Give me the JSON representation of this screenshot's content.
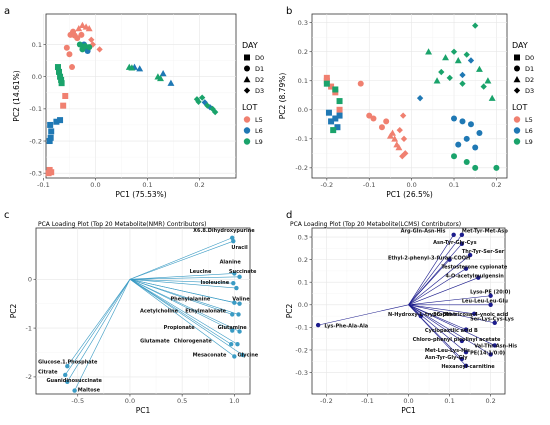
{
  "colors": {
    "L5": "#f08070",
    "L6": "#1f78b4",
    "L9": "#1aa36b",
    "loading_c": "#3a9bc4",
    "loading_d": "#1c1c8c"
  },
  "legend": {
    "day_title": "DAY",
    "day_items": [
      "D0",
      "D1",
      "D2",
      "D3"
    ],
    "lot_title": "LOT",
    "lot_items": [
      "L5",
      "L6",
      "L9"
    ]
  },
  "chart_data": [
    {
      "panel": "a",
      "type": "scatter",
      "xlabel": "PC1 (75.53%)",
      "ylabel": "PC2 (14.61%)",
      "xlim": [
        -0.095,
        0.27
      ],
      "ylim": [
        -0.315,
        0.195
      ],
      "xticks": [
        -0.1,
        0.0,
        0.1,
        0.2
      ],
      "xtick_labels": [
        "-0.1",
        "0.0",
        "0.1",
        "0.2"
      ],
      "yticks": [
        -0.3,
        -0.2,
        -0.1,
        0.0,
        0.1
      ],
      "ytick_labels": [
        "-0.3",
        "-0.2",
        "-0.1",
        "0.0",
        "0.1"
      ],
      "points": [
        [
          -0.088,
          -0.29,
          "L5",
          "D0"
        ],
        [
          -0.085,
          -0.297,
          "L5",
          "D0"
        ],
        [
          -0.062,
          -0.09,
          "L5",
          "D0"
        ],
        [
          -0.058,
          -0.06,
          "L5",
          "D0"
        ],
        [
          -0.09,
          -0.3,
          "L5",
          "D0"
        ],
        [
          -0.055,
          0.09,
          "L5",
          "D1"
        ],
        [
          -0.05,
          0.07,
          "L5",
          "D1"
        ],
        [
          -0.045,
          0.03,
          "L5",
          "D1"
        ],
        [
          -0.048,
          0.13,
          "L5",
          "D1"
        ],
        [
          -0.044,
          0.135,
          "L5",
          "D1"
        ],
        [
          -0.043,
          0.14,
          "L5",
          "D1"
        ],
        [
          -0.04,
          0.128,
          "L5",
          "D1"
        ],
        [
          -0.035,
          0.12,
          "L5",
          "D1"
        ],
        [
          -0.032,
          0.15,
          "L5",
          "D2"
        ],
        [
          -0.025,
          0.16,
          "L5",
          "D2"
        ],
        [
          -0.018,
          0.155,
          "L5",
          "D2"
        ],
        [
          -0.012,
          0.15,
          "L5",
          "D2"
        ],
        [
          -0.008,
          0.115,
          "L5",
          "D3"
        ],
        [
          -0.005,
          0.1,
          "L5",
          "D3"
        ],
        [
          0.008,
          0.085,
          "L5",
          "D3"
        ],
        [
          -0.02,
          0.09,
          "L5",
          "D3"
        ],
        [
          -0.027,
          0.13,
          "L5",
          "D1"
        ],
        [
          -0.087,
          -0.15,
          "L6",
          "D0"
        ],
        [
          -0.085,
          -0.17,
          "L6",
          "D0"
        ],
        [
          -0.086,
          -0.19,
          "L6",
          "D0"
        ],
        [
          -0.088,
          -0.2,
          "L6",
          "D0"
        ],
        [
          -0.075,
          -0.14,
          "L6",
          "D0"
        ],
        [
          -0.068,
          -0.135,
          "L6",
          "D0"
        ],
        [
          -0.022,
          0.1,
          "L6",
          "D1"
        ],
        [
          -0.015,
          0.08,
          "L6",
          "D1"
        ],
        [
          0.075,
          0.03,
          "L6",
          "D2"
        ],
        [
          0.085,
          0.025,
          "L6",
          "D2"
        ],
        [
          0.13,
          0.01,
          "L6",
          "D2"
        ],
        [
          0.145,
          -0.02,
          "L6",
          "D2"
        ],
        [
          0.21,
          -0.08,
          "L6",
          "D3"
        ],
        [
          0.22,
          -0.095,
          "L6",
          "D3"
        ],
        [
          -0.07,
          0.015,
          "L9",
          "D0"
        ],
        [
          -0.068,
          0.0,
          "L9",
          "D0"
        ],
        [
          -0.072,
          0.03,
          "L9",
          "D0"
        ],
        [
          -0.065,
          -0.02,
          "L9",
          "D0"
        ],
        [
          -0.066,
          -0.01,
          "L9",
          "D0"
        ],
        [
          -0.03,
          0.1,
          "L9",
          "D1"
        ],
        [
          -0.025,
          0.085,
          "L9",
          "D1"
        ],
        [
          -0.02,
          0.095,
          "L9",
          "D1"
        ],
        [
          -0.012,
          0.092,
          "L9",
          "D1"
        ],
        [
          0.065,
          0.03,
          "L9",
          "D2"
        ],
        [
          0.07,
          0.028,
          "L9",
          "D2"
        ],
        [
          0.12,
          0.0,
          "L9",
          "D2"
        ],
        [
          0.125,
          -0.005,
          "L9",
          "D2"
        ],
        [
          0.195,
          -0.07,
          "L9",
          "D3"
        ],
        [
          0.205,
          -0.065,
          "L9",
          "D3"
        ],
        [
          0.215,
          -0.09,
          "L9",
          "D3"
        ],
        [
          0.225,
          -0.1,
          "L9",
          "D3"
        ],
        [
          0.23,
          -0.11,
          "L9",
          "D3"
        ],
        [
          0.198,
          -0.078,
          "L9",
          "D3"
        ]
      ]
    },
    {
      "panel": "b",
      "type": "scatter",
      "xlabel": "PC1 (26.5%)",
      "ylabel": "PC2 (8.79%)",
      "xlim": [
        -0.235,
        0.225
      ],
      "ylim": [
        -0.235,
        0.33
      ],
      "xticks": [
        -0.2,
        -0.1,
        0.0,
        0.1,
        0.2
      ],
      "xtick_labels": [
        "-0.2",
        "-0.1",
        "0.0",
        "0.1",
        "0.2"
      ],
      "yticks": [
        -0.2,
        -0.1,
        0.0,
        0.1,
        0.2,
        0.3
      ],
      "ytick_labels": [
        "-0.2",
        "-0.1",
        "0.0",
        "0.1",
        "0.2",
        "0.3"
      ],
      "points": [
        [
          -0.2,
          0.1,
          "L5",
          "D0"
        ],
        [
          -0.19,
          0.08,
          "L5",
          "D0"
        ],
        [
          -0.18,
          0.06,
          "L5",
          "D0"
        ],
        [
          -0.17,
          0.0,
          "L5",
          "D0"
        ],
        [
          -0.2,
          0.11,
          "L5",
          "D0"
        ],
        [
          -0.12,
          0.09,
          "L5",
          "D1"
        ],
        [
          -0.1,
          -0.02,
          "L5",
          "D1"
        ],
        [
          -0.09,
          -0.03,
          "L5",
          "D1"
        ],
        [
          -0.07,
          -0.06,
          "L5",
          "D1"
        ],
        [
          -0.06,
          -0.04,
          "L5",
          "D1"
        ],
        [
          -0.05,
          -0.09,
          "L5",
          "D2"
        ],
        [
          -0.045,
          -0.08,
          "L5",
          "D2"
        ],
        [
          -0.04,
          -0.1,
          "L5",
          "D2"
        ],
        [
          -0.035,
          -0.12,
          "L5",
          "D2"
        ],
        [
          -0.03,
          -0.13,
          "L5",
          "D2"
        ],
        [
          -0.028,
          -0.07,
          "L5",
          "D3"
        ],
        [
          -0.022,
          -0.16,
          "L5",
          "D3"
        ],
        [
          -0.018,
          -0.1,
          "L5",
          "D3"
        ],
        [
          -0.015,
          -0.15,
          "L5",
          "D3"
        ],
        [
          -0.02,
          -0.02,
          "L5",
          "D3"
        ],
        [
          -0.19,
          -0.04,
          "L6",
          "D0"
        ],
        [
          -0.18,
          -0.03,
          "L6",
          "D0"
        ],
        [
          -0.17,
          -0.02,
          "L6",
          "D0"
        ],
        [
          -0.195,
          -0.01,
          "L6",
          "D0"
        ],
        [
          -0.175,
          -0.06,
          "L6",
          "D0"
        ],
        [
          0.02,
          0.04,
          "L6",
          "D3"
        ],
        [
          0.1,
          -0.03,
          "L6",
          "D1"
        ],
        [
          0.12,
          -0.04,
          "L6",
          "D1"
        ],
        [
          0.14,
          -0.05,
          "L6",
          "D1"
        ],
        [
          0.16,
          -0.08,
          "L6",
          "D1"
        ],
        [
          0.13,
          -0.1,
          "L6",
          "D1"
        ],
        [
          0.11,
          -0.12,
          "L6",
          "D1"
        ],
        [
          0.15,
          -0.13,
          "L6",
          "D1"
        ],
        [
          0.14,
          0.17,
          "L6",
          "D3"
        ],
        [
          0.12,
          0.12,
          "L6",
          "D3"
        ],
        [
          -0.2,
          0.09,
          "L9",
          "D0"
        ],
        [
          -0.18,
          0.07,
          "L9",
          "D0"
        ],
        [
          -0.185,
          -0.07,
          "L9",
          "D0"
        ],
        [
          -0.17,
          0.03,
          "L9",
          "D0"
        ],
        [
          0.04,
          0.2,
          "L9",
          "D2"
        ],
        [
          0.06,
          0.1,
          "L9",
          "D2"
        ],
        [
          0.07,
          0.13,
          "L9",
          "D3"
        ],
        [
          0.08,
          0.18,
          "L9",
          "D2"
        ],
        [
          0.09,
          0.11,
          "L9",
          "D3"
        ],
        [
          0.1,
          0.2,
          "L9",
          "D3"
        ],
        [
          0.11,
          0.17,
          "L9",
          "D2"
        ],
        [
          0.12,
          0.09,
          "L9",
          "D3"
        ],
        [
          0.13,
          0.19,
          "L9",
          "D3"
        ],
        [
          0.15,
          0.29,
          "L9",
          "D3"
        ],
        [
          0.16,
          0.14,
          "L9",
          "D2"
        ],
        [
          0.17,
          0.08,
          "L9",
          "D3"
        ],
        [
          0.18,
          0.1,
          "L9",
          "D2"
        ],
        [
          0.19,
          0.04,
          "L9",
          "D2"
        ],
        [
          0.1,
          -0.16,
          "L9",
          "D1"
        ],
        [
          0.13,
          -0.18,
          "L9",
          "D1"
        ],
        [
          0.15,
          -0.2,
          "L9",
          "D1"
        ],
        [
          0.2,
          -0.2,
          "L9",
          "D1"
        ]
      ]
    },
    {
      "panel": "c",
      "type": "biplot",
      "subtitle": "PCA Loading Plot (Top 20 Metabolite(NMR) Contributors)",
      "xlabel": "PC1",
      "ylabel": "PC2",
      "xlim": [
        -0.9,
        1.15
      ],
      "ylim": [
        -2.35,
        1.05
      ],
      "xticks": [
        -0.5,
        0.0,
        0.5,
        1.0
      ],
      "xtick_labels": [
        "-0.5",
        "0.0",
        "0.5",
        "1.0"
      ],
      "yticks": [
        -2,
        -1,
        0
      ],
      "ytick_labels": [
        "-2",
        "-1",
        "0"
      ],
      "arrows": [
        {
          "label": "X6.8.Dihydroxypurine",
          "x": 0.98,
          "y": 0.85,
          "lx": 0.9,
          "ly": 0.97,
          "anchor": "middle"
        },
        {
          "label": "Uracil",
          "x": 0.99,
          "y": 0.78,
          "lx": 1.05,
          "ly": 0.62,
          "anchor": "middle"
        },
        {
          "label": "Alanine",
          "x": 1.0,
          "y": 0.12,
          "lx": 0.96,
          "ly": 0.32,
          "anchor": "middle"
        },
        {
          "label": "Succinate",
          "x": 1.05,
          "y": 0.05,
          "lx": 1.08,
          "ly": 0.13,
          "anchor": "middle"
        },
        {
          "label": "Leucine",
          "x": 0.99,
          "y": -0.08,
          "lx": 0.78,
          "ly": 0.13,
          "anchor": "end"
        },
        {
          "label": "Isoleucine",
          "x": 1.02,
          "y": -0.18,
          "lx": 0.95,
          "ly": -0.1,
          "anchor": "end"
        },
        {
          "label": "Phenylalanine",
          "x": 1.0,
          "y": -0.48,
          "lx": 0.77,
          "ly": -0.43,
          "anchor": "end"
        },
        {
          "label": "Valine",
          "x": 1.05,
          "y": -0.5,
          "lx": 0.98,
          "ly": -0.43,
          "anchor": "start"
        },
        {
          "label": "Acetylcholine",
          "x": 0.98,
          "y": -0.72,
          "lx": 0.46,
          "ly": -0.68,
          "anchor": "end"
        },
        {
          "label": "Ethylmalonate",
          "x": 1.04,
          "y": -0.72,
          "lx": 0.53,
          "ly": -0.68,
          "anchor": "start"
        },
        {
          "label": "Propionate",
          "x": 0.98,
          "y": -1.05,
          "lx": 0.62,
          "ly": -1.02,
          "anchor": "end"
        },
        {
          "label": "Glutamine",
          "x": 1.05,
          "y": -1.07,
          "lx": 0.84,
          "ly": -1.02,
          "anchor": "start"
        },
        {
          "label": "Glutamate",
          "x": 0.97,
          "y": -1.33,
          "lx": 0.38,
          "ly": -1.3,
          "anchor": "end"
        },
        {
          "label": "Chlorogenate",
          "x": 1.03,
          "y": -1.33,
          "lx": 0.42,
          "ly": -1.3,
          "anchor": "start"
        },
        {
          "label": "Mesaconate",
          "x": 1.0,
          "y": -1.58,
          "lx": 0.6,
          "ly": -1.58,
          "anchor": "start"
        },
        {
          "label": "Glycine",
          "x": 1.08,
          "y": -1.55,
          "lx": 1.03,
          "ly": -1.58,
          "anchor": "start"
        },
        {
          "label": "Glucose.1.Phosphate",
          "x": -0.6,
          "y": -1.78,
          "lx": -0.88,
          "ly": -1.73,
          "anchor": "start"
        },
        {
          "label": "Citrate",
          "x": -0.62,
          "y": -1.96,
          "lx": -0.88,
          "ly": -1.93,
          "anchor": "start"
        },
        {
          "label": "Guanidinosuccinate",
          "x": -0.6,
          "y": -2.1,
          "lx": -0.8,
          "ly": -2.1,
          "anchor": "start"
        },
        {
          "label": "Maltose",
          "x": -0.53,
          "y": -2.28,
          "lx": -0.5,
          "ly": -2.3,
          "anchor": "start"
        }
      ]
    },
    {
      "panel": "d",
      "type": "biplot",
      "subtitle": "PCA Loading Plot (Top 20 Metabolite(LCMS) Contributors)",
      "xlabel": "PC1",
      "ylabel": "PC2",
      "xlim": [
        -0.235,
        0.235
      ],
      "ylim": [
        -0.395,
        0.34
      ],
      "xticks": [
        -0.2,
        -0.1,
        0.0,
        0.1,
        0.2
      ],
      "xtick_labels": [
        "-0.2",
        "-0.1",
        "0.0",
        "0.1",
        "0.2"
      ],
      "yticks": [
        -0.3,
        -0.2,
        -0.1,
        0.0,
        0.1,
        0.2,
        0.3
      ],
      "ytick_labels": [
        "-0.3",
        "-0.2",
        "-0.1",
        "0.0",
        "0.1",
        "0.2",
        "0.3"
      ],
      "arrows": [
        {
          "label": "Arg-Gln-Asn-His",
          "x": 0.11,
          "y": 0.31,
          "lx": 0.09,
          "ly": 0.32,
          "anchor": "end"
        },
        {
          "label": "Met-Tyr-Met-Asp",
          "x": 0.13,
          "y": 0.31,
          "lx": 0.13,
          "ly": 0.32,
          "anchor": "start"
        },
        {
          "label": "Asn-Tyr-Gly-Cys",
          "x": 0.13,
          "y": 0.27,
          "lx": 0.06,
          "ly": 0.27,
          "anchor": "start"
        },
        {
          "label": "Thr-Tyr-Ser-Ser",
          "x": 0.15,
          "y": 0.22,
          "lx": 0.13,
          "ly": 0.23,
          "anchor": "start"
        },
        {
          "label": "Ethyl-2-phenyl-3-furan-COOH",
          "x": 0.1,
          "y": 0.2,
          "lx": -0.05,
          "ly": 0.2,
          "anchor": "start"
        },
        {
          "label": "Testosterone cypionate",
          "x": 0.14,
          "y": 0.16,
          "lx": 0.08,
          "ly": 0.16,
          "anchor": "start"
        },
        {
          "label": "4-O-acetylmulgensin",
          "x": 0.17,
          "y": 0.12,
          "lx": 0.09,
          "ly": 0.12,
          "anchor": "start"
        },
        {
          "label": "Lyso-PE (20:0)",
          "x": 0.2,
          "y": 0.04,
          "lx": 0.15,
          "ly": 0.05,
          "anchor": "start"
        },
        {
          "label": "Leu-Leu-Leu-Glu",
          "x": 0.2,
          "y": 0.0,
          "lx": 0.13,
          "ly": 0.01,
          "anchor": "start"
        },
        {
          "label": "N-Hydroxy-L-tryptophan",
          "x": 0.03,
          "y": -0.05,
          "lx": -0.05,
          "ly": -0.05,
          "anchor": "start"
        },
        {
          "label": "5C-OH-tricosa-4-ynoic acid",
          "x": 0.16,
          "y": -0.04,
          "lx": 0.06,
          "ly": -0.05,
          "anchor": "start"
        },
        {
          "label": "Ser-Lys-Cys-Lys",
          "x": 0.21,
          "y": -0.08,
          "lx": 0.15,
          "ly": -0.07,
          "anchor": "start"
        },
        {
          "label": "Lys-Phe-Ala-Ala",
          "x": -0.22,
          "y": -0.09,
          "lx": -0.205,
          "ly": -0.1,
          "anchor": "start"
        },
        {
          "label": "Cyclopaxtlic acid B",
          "x": 0.14,
          "y": -0.11,
          "lx": 0.04,
          "ly": -0.12,
          "anchor": "start"
        },
        {
          "label": "Chloro-phenyl picolinyl acetate",
          "x": 0.13,
          "y": -0.16,
          "lx": 0.01,
          "ly": -0.16,
          "anchor": "start"
        },
        {
          "label": "Val-Thr-Asn-His",
          "x": 0.21,
          "y": -0.18,
          "lx": 0.16,
          "ly": -0.19,
          "anchor": "start"
        },
        {
          "label": "Met-Leu-Lys-His",
          "x": 0.14,
          "y": -0.21,
          "lx": 0.04,
          "ly": -0.21,
          "anchor": "start"
        },
        {
          "label": "PE(14:1/0:0)",
          "x": 0.2,
          "y": -0.22,
          "lx": 0.15,
          "ly": -0.22,
          "anchor": "start"
        },
        {
          "label": "Asn-Tyr-Gly-Gly",
          "x": 0.13,
          "y": -0.24,
          "lx": 0.04,
          "ly": -0.24,
          "anchor": "start"
        },
        {
          "label": "Hexanoyl-carnitine",
          "x": 0.14,
          "y": -0.27,
          "lx": 0.08,
          "ly": -0.28,
          "anchor": "start"
        }
      ]
    }
  ]
}
